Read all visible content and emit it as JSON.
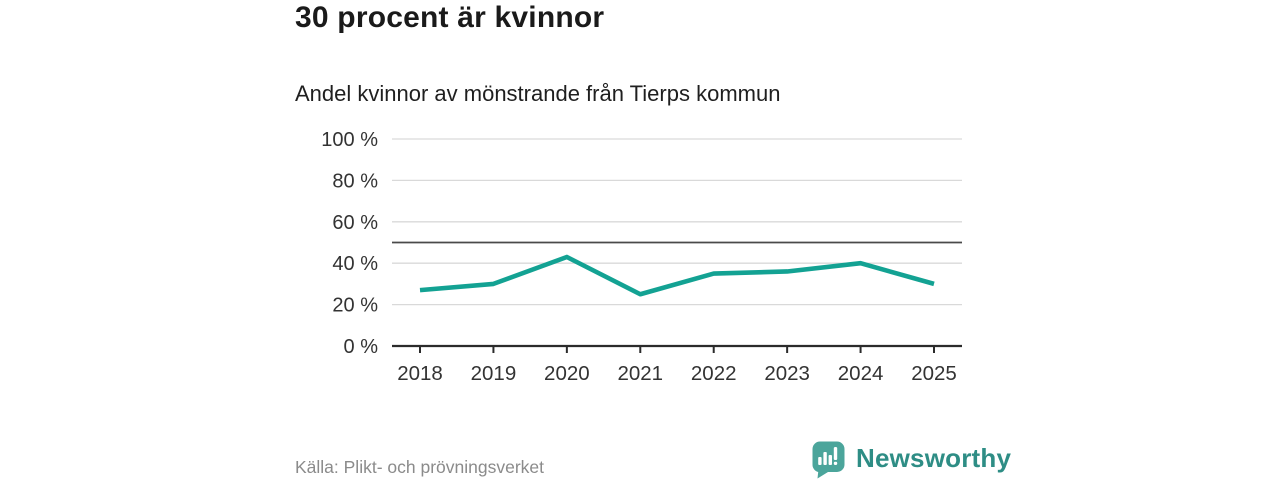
{
  "chart_data": {
    "type": "line",
    "title": "30 procent är kvinnor",
    "subtitle": "Andel kvinnor av mönstrande från Tierps kommun",
    "categories": [
      "2018",
      "2019",
      "2020",
      "2021",
      "2022",
      "2023",
      "2024",
      "2025"
    ],
    "values": [
      27,
      30,
      43,
      25,
      35,
      36,
      40,
      30
    ],
    "ylim": [
      0,
      100
    ],
    "yticks": [
      0,
      20,
      40,
      60,
      80,
      100
    ],
    "ytick_suffix": " %",
    "reference_line_y": 50,
    "grid": "on",
    "legend": "none",
    "colors": {
      "line": "#13a293",
      "grid": "#d9d9d9",
      "reference": "#4a4a4a",
      "axis": "#2b2b2b",
      "tick_label": "#333333"
    }
  },
  "footer": {
    "source": "Källa: Plikt- och prövningsverket",
    "brand": "Newsworthy",
    "brand_color": "#2e8d85",
    "logo_bubble_color": "#4ba59b",
    "logo_glyph_color": "#ffffff"
  }
}
